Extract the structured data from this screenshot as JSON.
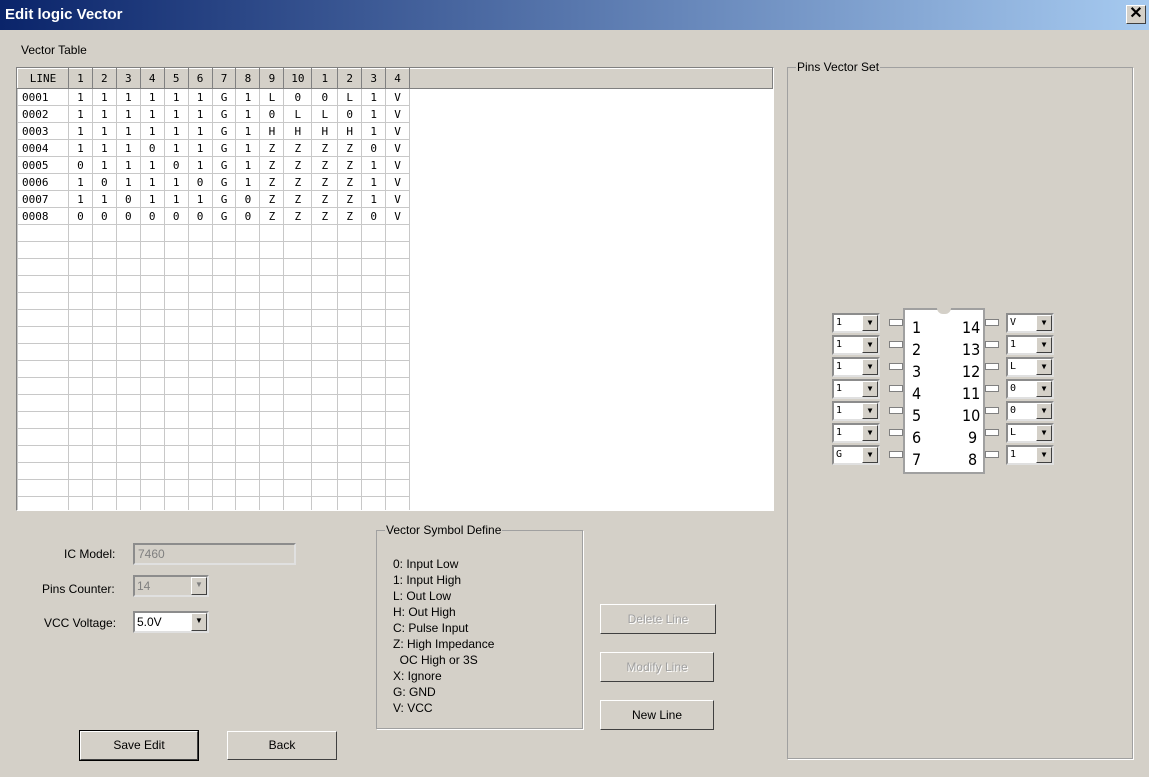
{
  "window": {
    "title": "Edit logic Vector",
    "close": "✕"
  },
  "vector_table": {
    "label": "Vector Table",
    "headers": [
      "LINE",
      "1",
      "2",
      "3",
      "4",
      "5",
      "6",
      "7",
      "8",
      "9",
      "10",
      "1",
      "2",
      "3",
      "4"
    ],
    "rows": [
      [
        "0001",
        "1",
        "1",
        "1",
        "1",
        "1",
        "1",
        "G",
        "1",
        "L",
        "0",
        "0",
        "L",
        "1",
        "V"
      ],
      [
        "0002",
        "1",
        "1",
        "1",
        "1",
        "1",
        "1",
        "G",
        "1",
        "0",
        "L",
        "L",
        "0",
        "1",
        "V"
      ],
      [
        "0003",
        "1",
        "1",
        "1",
        "1",
        "1",
        "1",
        "G",
        "1",
        "H",
        "H",
        "H",
        "H",
        "1",
        "V"
      ],
      [
        "0004",
        "1",
        "1",
        "1",
        "0",
        "1",
        "1",
        "G",
        "1",
        "Z",
        "Z",
        "Z",
        "Z",
        "0",
        "V"
      ],
      [
        "0005",
        "0",
        "1",
        "1",
        "1",
        "0",
        "1",
        "G",
        "1",
        "Z",
        "Z",
        "Z",
        "Z",
        "1",
        "V"
      ],
      [
        "0006",
        "1",
        "0",
        "1",
        "1",
        "1",
        "0",
        "G",
        "1",
        "Z",
        "Z",
        "Z",
        "Z",
        "1",
        "V"
      ],
      [
        "0007",
        "1",
        "1",
        "0",
        "1",
        "1",
        "1",
        "G",
        "0",
        "Z",
        "Z",
        "Z",
        "Z",
        "1",
        "V"
      ],
      [
        "0008",
        "0",
        "0",
        "0",
        "0",
        "0",
        "0",
        "G",
        "0",
        "Z",
        "Z",
        "Z",
        "Z",
        "0",
        "V"
      ]
    ]
  },
  "form": {
    "ic_model_label": "IC Model:",
    "ic_model_value": "7460",
    "pins_label": "Pins Counter:",
    "pins_value": "14",
    "vcc_label": "VCC Voltage:",
    "vcc_value": "5.0V"
  },
  "symbols": {
    "label": "Vector Symbol Define",
    "items": [
      "0: Input Low",
      "1: Input High",
      "L: Out Low",
      "H: Out High",
      "C: Pulse Input",
      "Z: High Impedance",
      "  OC High or 3S",
      "X: Ignore",
      "G: GND",
      "V: VCC"
    ]
  },
  "buttons": {
    "delete": "Delete Line",
    "modify": "Modify Line",
    "new": "New Line",
    "save": "Save Edit",
    "back": "Back"
  },
  "pins": {
    "label": "Pins Vector Set",
    "left": [
      {
        "num": "1",
        "value": "1"
      },
      {
        "num": "2",
        "value": "1"
      },
      {
        "num": "3",
        "value": "1"
      },
      {
        "num": "4",
        "value": "1"
      },
      {
        "num": "5",
        "value": "1"
      },
      {
        "num": "6",
        "value": "1"
      },
      {
        "num": "7",
        "value": "G"
      }
    ],
    "right": [
      {
        "num": "14",
        "value": "V"
      },
      {
        "num": "13",
        "value": "1"
      },
      {
        "num": "12",
        "value": "L"
      },
      {
        "num": "11",
        "value": "0"
      },
      {
        "num": "10",
        "value": "0"
      },
      {
        "num": "9",
        "value": "L"
      },
      {
        "num": "8",
        "value": "1"
      }
    ]
  }
}
